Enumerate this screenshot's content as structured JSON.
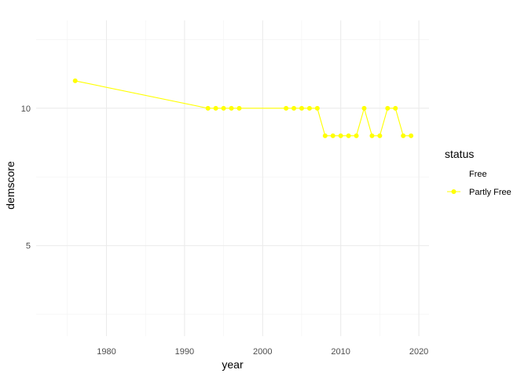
{
  "chart_data": {
    "type": "line",
    "xlabel": "year",
    "ylabel": "demscore",
    "xlim": [
      1971,
      2021.3
    ],
    "ylim": [
      1.7,
      13.2
    ],
    "x_ticks_major": [
      1980,
      1990,
      2000,
      2010,
      2020
    ],
    "x_ticks_minor": [
      1975,
      1985,
      1995,
      2005,
      2015
    ],
    "y_ticks_major": [
      5,
      10
    ],
    "y_ticks_minor": [
      2.5,
      7.5,
      12.5
    ],
    "grid": true,
    "legend": {
      "title": "status",
      "placement": "right",
      "entries": [
        "Free",
        "Partly Free"
      ]
    },
    "series": [
      {
        "name": "Free",
        "color": "#ffffff",
        "x": [],
        "y": []
      },
      {
        "name": "Partly Free",
        "color": "#ffff00",
        "x": [
          1976,
          1993,
          1994,
          1995,
          1996,
          1997,
          2003,
          2004,
          2005,
          2006,
          2007,
          2008,
          2009,
          2010,
          2011,
          2012,
          2013,
          2014,
          2015,
          2016,
          2017,
          2018,
          2019
        ],
        "y": [
          11,
          10,
          10,
          10,
          10,
          10,
          10,
          10,
          10,
          10,
          10,
          9,
          9,
          9,
          9,
          9,
          10,
          9,
          9,
          10,
          10,
          9,
          9
        ]
      }
    ]
  }
}
